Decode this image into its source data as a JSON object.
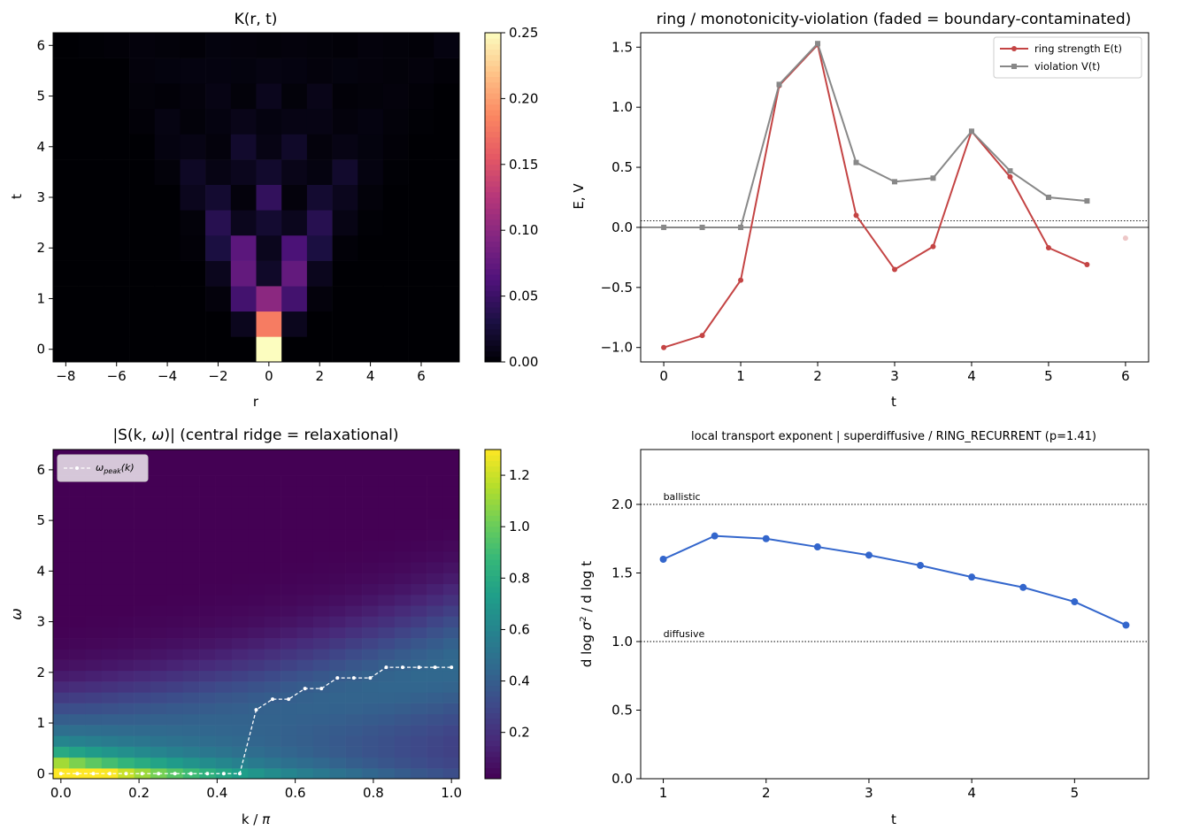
{
  "chart_data": [
    {
      "type": "heatmap",
      "title": "K(r, t)",
      "xlabel": "r",
      "ylabel": "t",
      "xticks": [
        "−8",
        "−6",
        "−4",
        "−2",
        "0",
        "2",
        "4",
        "6"
      ],
      "yticks": [
        "0",
        "1",
        "2",
        "3",
        "4",
        "5",
        "6"
      ],
      "xlim": [
        -8.5,
        7.5
      ],
      "ylim": [
        -0.25,
        6.25
      ],
      "colormap": "magma",
      "vmin": 0,
      "vmax": 0.25,
      "colorbar_ticks": [
        "0.00",
        "0.05",
        "0.10",
        "0.15",
        "0.20",
        "0.25"
      ],
      "r_values": [
        -8,
        -7,
        -6,
        -5,
        -4,
        -3,
        -2,
        -1,
        0,
        1,
        2,
        3,
        4,
        5,
        6,
        7
      ],
      "t_values": [
        0,
        0.5,
        1,
        1.5,
        2,
        2.5,
        3,
        3.5,
        4,
        4.5,
        5,
        5.5,
        6
      ],
      "values": [
        [
          0,
          0,
          0,
          0,
          0,
          0,
          0,
          0,
          0.25,
          0,
          0,
          0,
          0,
          0,
          0,
          0
        ],
        [
          0,
          0,
          0,
          0,
          0,
          0,
          0,
          0.012,
          0.18,
          0.012,
          0,
          0,
          0,
          0,
          0,
          0
        ],
        [
          0,
          0,
          0,
          0,
          0,
          0,
          0.004,
          0.055,
          0.1,
          0.055,
          0.004,
          0,
          0,
          0,
          0,
          0
        ],
        [
          0,
          0,
          0,
          0,
          0,
          0,
          0.012,
          0.075,
          0.018,
          0.075,
          0.012,
          0,
          0,
          0,
          0,
          0
        ],
        [
          0,
          0,
          0,
          0,
          0,
          0.002,
          0.03,
          0.07,
          0.012,
          0.06,
          0.03,
          0.002,
          0,
          0,
          0,
          0
        ],
        [
          0,
          0,
          0,
          0,
          0,
          0.003,
          0.038,
          0.012,
          0.022,
          0.012,
          0.038,
          0.008,
          0.001,
          0,
          0,
          0
        ],
        [
          0,
          0,
          0,
          0,
          0,
          0.012,
          0.022,
          0.004,
          0.045,
          0.004,
          0.022,
          0.012,
          0.003,
          0,
          0,
          0
        ],
        [
          0,
          0,
          0,
          0,
          0.003,
          0.016,
          0.008,
          0.012,
          0.02,
          0.01,
          0.006,
          0.02,
          0.006,
          0.001,
          0,
          0
        ],
        [
          0,
          0,
          0,
          0,
          0.006,
          0.008,
          0.004,
          0.02,
          0.008,
          0.018,
          0.004,
          0.008,
          0.005,
          0.002,
          0,
          0
        ],
        [
          0,
          0,
          0,
          0.002,
          0.007,
          0.003,
          0.006,
          0.01,
          0.006,
          0.008,
          0.008,
          0.004,
          0.006,
          0.003,
          0.001,
          0
        ],
        [
          0,
          0,
          0,
          0.003,
          0.002,
          0.004,
          0.008,
          0.003,
          0.012,
          0.003,
          0.01,
          0.002,
          0.003,
          0.004,
          0.002,
          0
        ],
        [
          0,
          0,
          0,
          0.004,
          0.005,
          0.006,
          0.006,
          0.005,
          0.007,
          0.006,
          0.004,
          0.005,
          0.004,
          0.003,
          0.004,
          0.002
        ],
        [
          0,
          0.001,
          0.002,
          0.004,
          0.003,
          0.002,
          0.005,
          0.004,
          0.003,
          0.004,
          0.003,
          0.002,
          0.004,
          0.003,
          0.002,
          0.006
        ]
      ]
    },
    {
      "type": "line",
      "title": "ring / monotonicity-violation (faded = boundary-contaminated)",
      "xlabel": "t",
      "ylabel": "E, V",
      "xlim": [
        -0.3,
        6.3
      ],
      "ylim": [
        -1.12,
        1.62
      ],
      "xticks": [
        0,
        1,
        2,
        3,
        4,
        5,
        6
      ],
      "yticks": [
        -1.0,
        -0.5,
        0.0,
        0.5,
        1.0,
        1.5
      ],
      "ytick_labels": [
        "−1.0",
        "−0.5",
        "0.0",
        "0.5",
        "1.0",
        "1.5"
      ],
      "hlines": [
        {
          "y": 0,
          "style": "solid"
        },
        {
          "y": 0.055,
          "style": "dotted"
        }
      ],
      "legend_position": "top-right",
      "series": [
        {
          "name": "ring strength E(t)",
          "color": "#c44444",
          "marker": "circle",
          "x": [
            0,
            0.5,
            1,
            1.5,
            2,
            2.5,
            3,
            3.5,
            4,
            4.5,
            5,
            5.5
          ],
          "y": [
            -1.0,
            -0.9,
            -0.44,
            1.18,
            1.52,
            0.1,
            -0.35,
            -0.16,
            0.8,
            0.42,
            -0.17,
            -0.31
          ]
        },
        {
          "name": "violation V(t)",
          "color": "#888888",
          "marker": "square",
          "x": [
            0,
            0.5,
            1,
            1.5,
            2,
            2.5,
            3,
            3.5,
            4,
            4.5,
            5,
            5.5
          ],
          "y": [
            0,
            0,
            0,
            1.19,
            1.53,
            0.54,
            0.38,
            0.41,
            0.8,
            0.47,
            0.25,
            0.22
          ]
        }
      ],
      "faded_points": [
        {
          "x": 6,
          "y": -0.09,
          "color": "#c44444"
        }
      ]
    },
    {
      "type": "heatmap",
      "title": "|S(k, ω)|  (central ridge = relaxational)",
      "xlabel": "k / π",
      "ylabel": "ω",
      "colormap": "viridis",
      "vmin": 0.02,
      "vmax": 1.3,
      "colorbar_ticks": [
        "0.2",
        "0.4",
        "0.6",
        "0.8",
        "1.0",
        "1.2"
      ],
      "xticks": [
        "0.0",
        "0.2",
        "0.4",
        "0.6",
        "0.8",
        "1.0"
      ],
      "yticks": [
        "0",
        "1",
        "2",
        "3",
        "4",
        "5",
        "6"
      ],
      "xlim": [
        -0.02,
        1.02
      ],
      "ylim": [
        -0.1,
        6.4
      ],
      "legend": "ω_peak(k)",
      "legend_position": "top-left",
      "k_count": 25,
      "omega_count": 28,
      "peak_line": {
        "name": "ω_peak(k)",
        "k": [
          0,
          0.042,
          0.083,
          0.125,
          0.167,
          0.208,
          0.25,
          0.292,
          0.333,
          0.375,
          0.417,
          0.458,
          0.5,
          0.542,
          0.583,
          0.625,
          0.667,
          0.708,
          0.75,
          0.792,
          0.833,
          0.875,
          0.917,
          0.958,
          1.0
        ],
        "omega": [
          0,
          0,
          0,
          0,
          0,
          0,
          0,
          0,
          0,
          0,
          0,
          0,
          1.26,
          1.47,
          1.47,
          1.68,
          1.68,
          1.89,
          1.89,
          1.89,
          2.1,
          2.1,
          2.1,
          2.1,
          2.1
        ]
      }
    },
    {
      "type": "line",
      "title": "local transport exponent  |  superdiffusive / RING_RECURRENT (p=1.41)",
      "xlabel": "t",
      "ylabel": "d log σ² / d log t",
      "xlim": [
        0.78,
        5.72
      ],
      "ylim": [
        0,
        2.4
      ],
      "xticks": [
        1,
        2,
        3,
        4,
        5
      ],
      "yticks": [
        0.0,
        0.5,
        1.0,
        1.5,
        2.0
      ],
      "reference_lines": [
        {
          "y": 2.0,
          "label": "ballistic"
        },
        {
          "y": 1.0,
          "label": "diffusive"
        }
      ],
      "series": [
        {
          "name": "",
          "color": "#3366cc",
          "x": [
            1,
            1.5,
            2,
            2.5,
            3,
            3.5,
            4,
            4.5,
            5,
            5.5
          ],
          "y": [
            1.6,
            1.77,
            1.75,
            1.69,
            1.63,
            1.555,
            1.47,
            1.395,
            1.29,
            1.12
          ]
        }
      ]
    }
  ]
}
